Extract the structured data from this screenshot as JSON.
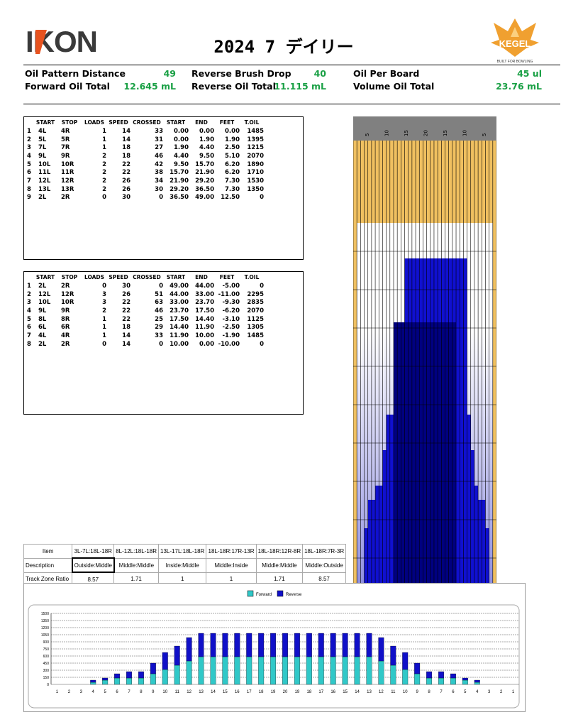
{
  "header": {
    "title": "2024 7 デイリー",
    "logo_text": "IKON",
    "kegel_text": "KEGEL",
    "kegel_sub": "BUILT FOR BOWLING"
  },
  "stats": {
    "col1": [
      {
        "label": "Oil Pattern Distance",
        "value": "49"
      },
      {
        "label": "Forward Oil Total",
        "value": "12.645 mL"
      }
    ],
    "col2": [
      {
        "label": "Reverse Brush Drop",
        "value": "40"
      },
      {
        "label": "Reverse Oil Total",
        "value": "11.115 mL"
      }
    ],
    "col3": [
      {
        "label": "Oil Per Board",
        "value": "45 ul"
      },
      {
        "label": "Volume Oil Total",
        "value": "23.76 mL"
      }
    ]
  },
  "forward_table": {
    "headers": [
      "",
      "START",
      "STOP",
      "LOADS",
      "SPEED",
      "CROSSED",
      "START",
      "END",
      "FEET",
      "T.OIL"
    ],
    "rows": [
      [
        "1",
        "4L",
        "4R",
        "1",
        "14",
        "33",
        "0.00",
        "0.00",
        "0.00",
        "1485"
      ],
      [
        "2",
        "5L",
        "5R",
        "1",
        "14",
        "31",
        "0.00",
        "1.90",
        "1.90",
        "1395"
      ],
      [
        "3",
        "7L",
        "7R",
        "1",
        "18",
        "27",
        "1.90",
        "4.40",
        "2.50",
        "1215"
      ],
      [
        "4",
        "9L",
        "9R",
        "2",
        "18",
        "46",
        "4.40",
        "9.50",
        "5.10",
        "2070"
      ],
      [
        "5",
        "10L",
        "10R",
        "2",
        "22",
        "42",
        "9.50",
        "15.70",
        "6.20",
        "1890"
      ],
      [
        "6",
        "11L",
        "11R",
        "2",
        "22",
        "38",
        "15.70",
        "21.90",
        "6.20",
        "1710"
      ],
      [
        "7",
        "12L",
        "12R",
        "2",
        "26",
        "34",
        "21.90",
        "29.20",
        "7.30",
        "1530"
      ],
      [
        "8",
        "13L",
        "13R",
        "2",
        "26",
        "30",
        "29.20",
        "36.50",
        "7.30",
        "1350"
      ],
      [
        "9",
        "2L",
        "2R",
        "0",
        "30",
        "0",
        "36.50",
        "49.00",
        "12.50",
        "0"
      ]
    ]
  },
  "reverse_table": {
    "headers": [
      "",
      "START",
      "STOP",
      "LOADS",
      "SPEED",
      "CROSSED",
      "START",
      "END",
      "FEET",
      "T.OIL"
    ],
    "rows": [
      [
        "1",
        "2L",
        "2R",
        "0",
        "30",
        "0",
        "49.00",
        "44.00",
        "-5.00",
        "0"
      ],
      [
        "2",
        "12L",
        "12R",
        "3",
        "26",
        "51",
        "44.00",
        "33.00",
        "-11.00",
        "2295"
      ],
      [
        "3",
        "10L",
        "10R",
        "3",
        "22",
        "63",
        "33.00",
        "23.70",
        "-9.30",
        "2835"
      ],
      [
        "4",
        "9L",
        "9R",
        "2",
        "22",
        "46",
        "23.70",
        "17.50",
        "-6.20",
        "2070"
      ],
      [
        "5",
        "8L",
        "8R",
        "1",
        "22",
        "25",
        "17.50",
        "14.40",
        "-3.10",
        "1125"
      ],
      [
        "6",
        "6L",
        "6R",
        "1",
        "18",
        "29",
        "14.40",
        "11.90",
        "-2.50",
        "1305"
      ],
      [
        "7",
        "4L",
        "4R",
        "1",
        "14",
        "33",
        "11.90",
        "10.00",
        "-1.90",
        "1485"
      ],
      [
        "8",
        "2L",
        "2R",
        "0",
        "14",
        "0",
        "10.00",
        "0.00",
        "-10.00",
        "0"
      ]
    ]
  },
  "lane_graphic": {
    "board_labels": [
      "5",
      "10",
      "15",
      "20",
      "15",
      "10",
      "5"
    ],
    "colors": {
      "wood": "#f0c060",
      "oil_light": "#c8c8f0",
      "oil_mid": "#1010d0",
      "oil_dark": "#000080",
      "header": "#808080"
    }
  },
  "zone_table": {
    "header": [
      "Item",
      "3L-7L:18L-18R",
      "8L-12L:18L-18R",
      "13L-17L:18L-18R",
      "18L-18R:17R-13R",
      "18L-18R:12R-8R",
      "18L-18R:7R-3R"
    ],
    "description": [
      "Description",
      "Outside:Middle",
      "Middle:Middle",
      "Inside:Middle",
      "Middle:Inside",
      "Middle:Middle",
      "Middle:Outside"
    ],
    "ratio": [
      "Track Zone Ratio",
      "8.57",
      "1.71",
      "1",
      "1",
      "1.71",
      "8.57"
    ]
  },
  "chart_data": {
    "type": "bar",
    "stacked": true,
    "categories": [
      "1",
      "2",
      "3",
      "4",
      "5",
      "6",
      "7",
      "8",
      "9",
      "10",
      "11",
      "12",
      "13",
      "14",
      "15",
      "16",
      "17",
      "18",
      "19",
      "20",
      "19",
      "18",
      "17",
      "16",
      "15",
      "14",
      "13",
      "12",
      "11",
      "10",
      "9",
      "8",
      "7",
      "6",
      "5",
      "4",
      "3",
      "2",
      "1"
    ],
    "series": [
      {
        "name": "Forward",
        "color": "#30c8c8",
        "values": [
          0,
          0,
          0,
          45,
          90,
          135,
          135,
          135,
          225,
          315,
          405,
          495,
          585,
          585,
          585,
          585,
          585,
          585,
          585,
          585,
          585,
          585,
          585,
          585,
          585,
          585,
          585,
          495,
          405,
          315,
          225,
          135,
          135,
          135,
          90,
          45,
          0,
          0,
          0
        ]
      },
      {
        "name": "Reverse",
        "color": "#1010c8",
        "values": [
          0,
          0,
          0,
          45,
          45,
          90,
          135,
          135,
          225,
          360,
          405,
          495,
          495,
          495,
          495,
          495,
          495,
          495,
          495,
          495,
          495,
          495,
          495,
          495,
          495,
          495,
          495,
          495,
          405,
          360,
          225,
          135,
          135,
          90,
          45,
          45,
          0,
          0,
          0
        ]
      }
    ],
    "yticks": [
      0,
      150,
      300,
      450,
      600,
      750,
      900,
      1050,
      1200,
      1350,
      1500
    ],
    "ylim": [
      0,
      1500
    ],
    "legend": "top-center",
    "grid": true
  }
}
